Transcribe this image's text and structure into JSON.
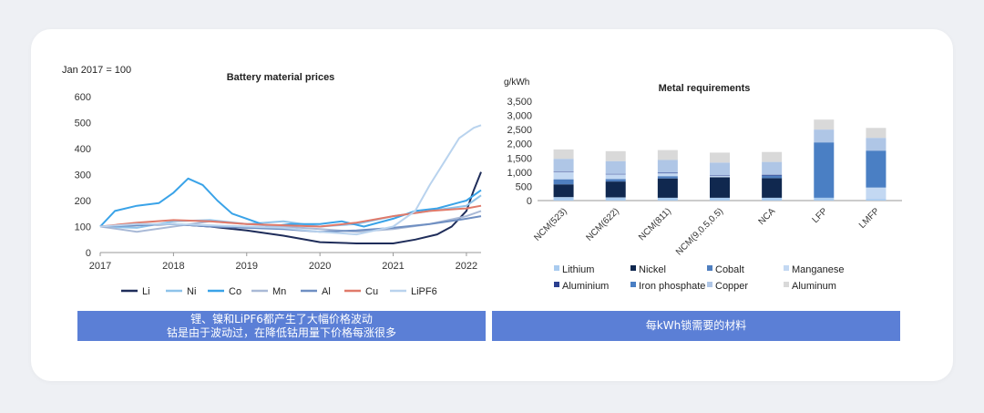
{
  "chart_data": [
    {
      "type": "line",
      "title": "Battery material prices",
      "ylabel": "Jan 2017 = 100",
      "xlabel": "",
      "ylim": [
        0,
        600
      ],
      "yticks": [
        "0",
        "100",
        "200",
        "300",
        "400",
        "500",
        "600"
      ],
      "xlim": [
        2017,
        2022.2
      ],
      "xticks": [
        "2017",
        "2018",
        "2019",
        "2020",
        "2021",
        "2022"
      ],
      "legend": "bottom",
      "series": [
        {
          "name": "Li",
          "color": "#1f2d5a",
          "x": [
            2017,
            2017.5,
            2018,
            2018.5,
            2019,
            2019.5,
            2020,
            2020.5,
            2021,
            2021.3,
            2021.6,
            2021.8,
            2022,
            2022.1,
            2022.2
          ],
          "values": [
            100,
            105,
            110,
            100,
            85,
            65,
            40,
            35,
            35,
            50,
            70,
            100,
            160,
            240,
            310
          ]
        },
        {
          "name": "Ni",
          "color": "#8ec3ea",
          "x": [
            2017,
            2017.5,
            2018,
            2018.5,
            2019,
            2019.5,
            2020,
            2020.5,
            2021,
            2021.5,
            2022,
            2022.1,
            2022.2
          ],
          "values": [
            100,
            95,
            120,
            125,
            110,
            120,
            100,
            110,
            140,
            160,
            180,
            200,
            220
          ]
        },
        {
          "name": "Co",
          "color": "#3aa3e8",
          "x": [
            2017,
            2017.2,
            2017.5,
            2017.8,
            2018,
            2018.2,
            2018.4,
            2018.6,
            2018.8,
            2019,
            2019.3,
            2019.6,
            2020,
            2020.3,
            2020.6,
            2021,
            2021.3,
            2021.6,
            2022,
            2022.2
          ],
          "values": [
            100,
            160,
            180,
            190,
            230,
            285,
            260,
            200,
            150,
            130,
            100,
            110,
            110,
            120,
            100,
            130,
            160,
            170,
            200,
            240
          ]
        },
        {
          "name": "Mn",
          "color": "#a9b9d6",
          "x": [
            2017,
            2017.5,
            2018,
            2018.5,
            2019,
            2019.5,
            2020,
            2020.5,
            2021,
            2021.5,
            2022,
            2022.2
          ],
          "values": [
            100,
            80,
            100,
            120,
            110,
            100,
            90,
            80,
            90,
            110,
            140,
            160
          ]
        },
        {
          "name": "Al",
          "color": "#6f8fc2",
          "x": [
            2017,
            2017.5,
            2018,
            2018.5,
            2019,
            2019.5,
            2020,
            2020.5,
            2021,
            2021.5,
            2022,
            2022.2
          ],
          "values": [
            100,
            105,
            110,
            100,
            95,
            90,
            80,
            85,
            95,
            110,
            130,
            140
          ]
        },
        {
          "name": "Cu",
          "color": "#e07a6a",
          "x": [
            2017,
            2017.5,
            2018,
            2018.5,
            2019,
            2019.5,
            2020,
            2020.5,
            2021,
            2021.5,
            2022,
            2022.2
          ],
          "values": [
            100,
            115,
            125,
            120,
            110,
            105,
            100,
            115,
            140,
            160,
            170,
            180
          ]
        },
        {
          "name": "LiPF6",
          "color": "#b9d3ee",
          "x": [
            2017,
            2017.5,
            2018,
            2018.5,
            2019,
            2019.5,
            2020,
            2020.5,
            2021,
            2021.3,
            2021.5,
            2021.7,
            2021.9,
            2022,
            2022.1,
            2022.2
          ],
          "values": [
            100,
            110,
            110,
            105,
            100,
            95,
            80,
            70,
            100,
            160,
            260,
            350,
            440,
            460,
            480,
            490
          ]
        }
      ]
    },
    {
      "type": "stacked_bar",
      "title": "Metal requirements",
      "ylabel": "g/kWh",
      "ylim": [
        0,
        3500
      ],
      "yticks": [
        "0",
        "500",
        "1,000",
        "1,500",
        "2,000",
        "2,500",
        "3,000",
        "3,500"
      ],
      "categories": [
        "NCM(523)",
        "NCM(622)",
        "NCM(811)",
        "NCM(9,0.5,0.5)",
        "NCA",
        "LFP",
        "LMFP"
      ],
      "legend": "bottom",
      "series": [
        {
          "name": "Lithium",
          "color": "#a9cbef",
          "values": [
            120,
            110,
            100,
            100,
            100,
            100,
            60
          ]
        },
        {
          "name": "Nickel",
          "color": "#10284f",
          "values": [
            450,
            560,
            680,
            720,
            690,
            0,
            0
          ]
        },
        {
          "name": "Cobalt",
          "color": "#4f7fbf",
          "values": [
            180,
            90,
            80,
            0,
            90,
            0,
            0
          ]
        },
        {
          "name": "Manganese",
          "color": "#c3d8f2",
          "values": [
            250,
            160,
            100,
            50,
            0,
            0,
            400
          ]
        },
        {
          "name": "Aluminium",
          "color": "#2b3f8f",
          "values": [
            20,
            20,
            20,
            20,
            30,
            0,
            0
          ]
        },
        {
          "name": "Iron phosphate",
          "color": "#4a7fc4",
          "values": [
            0,
            0,
            0,
            0,
            0,
            1950,
            1300
          ]
        },
        {
          "name": "Copper",
          "color": "#afc6e6",
          "values": [
            450,
            450,
            450,
            450,
            450,
            450,
            450
          ]
        },
        {
          "name": "Aluminum",
          "color": "#d9d9d9",
          "values": [
            330,
            350,
            350,
            350,
            350,
            350,
            350
          ]
        }
      ]
    }
  ],
  "captions": {
    "left_line1": "锂、镍和LiPF6都产生了大幅价格波动",
    "left_line2": "钴是由于波动过，在降低钴用量下价格每涨很多",
    "right": "每kWh锁需要的材料"
  }
}
